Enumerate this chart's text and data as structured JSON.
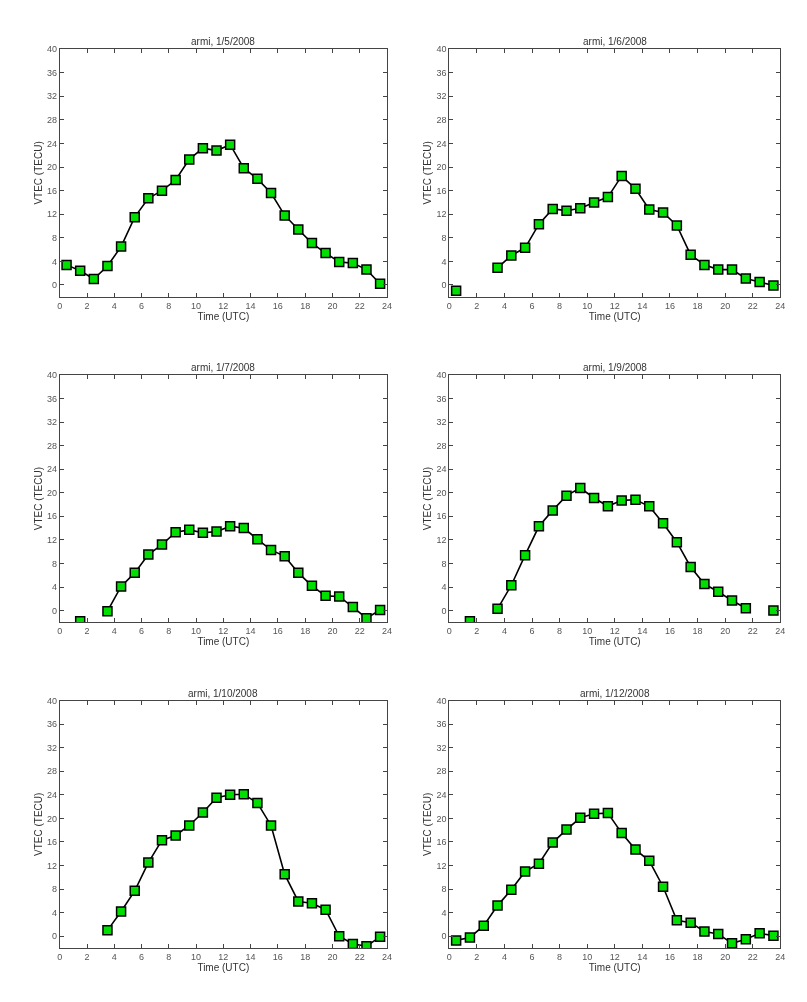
{
  "chart_data": [
    {
      "type": "line",
      "title": "armi, 1/5/2008",
      "xlabel": "Time (UTC)",
      "ylabel": "VTEC (TECU)",
      "marker": "square",
      "xlim": [
        0,
        24
      ],
      "xticks": [
        0,
        2,
        4,
        6,
        8,
        10,
        12,
        14,
        16,
        18,
        20,
        22,
        24
      ],
      "ylim": [
        -2,
        40
      ],
      "yticks": [
        0,
        4,
        8,
        12,
        16,
        20,
        24,
        28,
        32,
        36,
        40
      ],
      "x": [
        0.5,
        1.5,
        2.5,
        3.5,
        4.5,
        5.5,
        6.5,
        7.5,
        8.5,
        9.5,
        10.5,
        11.5,
        12.5,
        13.5,
        14.5,
        15.5,
        16.5,
        17.5,
        18.5,
        19.5,
        20.5,
        21.5,
        22.5,
        23.5
      ],
      "series": [
        {
          "color": "#00e000",
          "values": [
            3.4,
            2.4,
            1.0,
            3.2,
            6.5,
            11.5,
            14.7,
            16.0,
            17.8,
            21.3,
            23.2,
            22.8,
            23.8,
            19.8,
            18.0,
            15.6,
            11.8,
            9.4,
            7.1,
            5.4,
            3.9,
            3.7,
            2.6,
            0.2
          ]
        }
      ]
    },
    {
      "type": "line",
      "title": "armi, 1/6/2008",
      "xlabel": "Time (UTC)",
      "ylabel": "VTEC (TECU)",
      "marker": "square",
      "xlim": [
        0,
        24
      ],
      "xticks": [
        0,
        2,
        4,
        6,
        8,
        10,
        12,
        14,
        16,
        18,
        20,
        22,
        24
      ],
      "ylim": [
        -2,
        40
      ],
      "yticks": [
        0,
        4,
        8,
        12,
        16,
        20,
        24,
        28,
        32,
        36,
        40
      ],
      "x": [
        0.5,
        1.5,
        2.5,
        3.5,
        4.5,
        5.5,
        6.5,
        7.5,
        8.5,
        9.5,
        10.5,
        11.5,
        12.5,
        13.5,
        14.5,
        15.5,
        16.5,
        17.5,
        18.5,
        19.5,
        20.5,
        21.5,
        22.5,
        23.5
      ],
      "series": [
        {
          "color": "#00e000",
          "values": [
            -1.0,
            null,
            null,
            2.9,
            5.0,
            6.3,
            10.3,
            12.9,
            12.6,
            13.0,
            14.0,
            14.9,
            18.5,
            16.3,
            12.8,
            12.3,
            10.1,
            5.1,
            3.4,
            2.6,
            2.6,
            1.1,
            0.5,
            -0.1
          ]
        }
      ]
    },
    {
      "type": "line",
      "title": "armi, 1/7/2008",
      "xlabel": "Time (UTC)",
      "ylabel": "VTEC (TECU)",
      "marker": "square",
      "xlim": [
        0,
        24
      ],
      "xticks": [
        0,
        2,
        4,
        6,
        8,
        10,
        12,
        14,
        16,
        18,
        20,
        22,
        24
      ],
      "ylim": [
        -2,
        40
      ],
      "yticks": [
        0,
        4,
        8,
        12,
        16,
        20,
        24,
        28,
        32,
        36,
        40
      ],
      "x": [
        1.5,
        2.5,
        3.5,
        4.5,
        5.5,
        6.5,
        7.5,
        8.5,
        9.5,
        10.5,
        11.5,
        12.5,
        13.5,
        14.5,
        15.5,
        16.5,
        17.5,
        18.5,
        19.5,
        20.5,
        21.5,
        22.5,
        23.5
      ],
      "series": [
        {
          "color": "#00e000",
          "values": [
            -1.8,
            null,
            -0.1,
            4.1,
            6.4,
            9.5,
            11.2,
            13.3,
            13.7,
            13.2,
            13.4,
            14.3,
            14.0,
            12.1,
            10.3,
            9.2,
            6.4,
            4.2,
            2.5,
            2.4,
            0.6,
            -1.3,
            0.1
          ]
        }
      ]
    },
    {
      "type": "line",
      "title": "armi, 1/9/2008",
      "xlabel": "Time (UTC)",
      "ylabel": "VTEC (TECU)",
      "marker": "square",
      "xlim": [
        0,
        24
      ],
      "xticks": [
        0,
        2,
        4,
        6,
        8,
        10,
        12,
        14,
        16,
        18,
        20,
        22,
        24
      ],
      "ylim": [
        -2,
        40
      ],
      "yticks": [
        0,
        4,
        8,
        12,
        16,
        20,
        24,
        28,
        32,
        36,
        40
      ],
      "x": [
        1.5,
        2.5,
        3.5,
        4.5,
        5.5,
        6.5,
        7.5,
        8.5,
        9.5,
        10.5,
        11.5,
        12.5,
        13.5,
        14.5,
        15.5,
        16.5,
        17.5,
        18.5,
        19.5,
        20.5,
        21.5,
        22.5,
        23.5
      ],
      "series": [
        {
          "color": "#00e000",
          "values": [
            -1.8,
            null,
            0.3,
            4.3,
            9.4,
            14.3,
            17.0,
            19.5,
            20.8,
            19.1,
            17.7,
            18.7,
            18.8,
            17.7,
            14.8,
            11.6,
            7.4,
            4.5,
            3.2,
            1.7,
            0.4,
            null,
            0.0
          ]
        }
      ]
    },
    {
      "type": "line",
      "title": "armi, 1/10/2008",
      "xlabel": "Time (UTC)",
      "ylabel": "VTEC (TECU)",
      "marker": "square",
      "xlim": [
        0,
        24
      ],
      "xticks": [
        0,
        2,
        4,
        6,
        8,
        10,
        12,
        14,
        16,
        18,
        20,
        22,
        24
      ],
      "ylim": [
        -2,
        40
      ],
      "yticks": [
        0,
        4,
        8,
        12,
        16,
        20,
        24,
        28,
        32,
        36,
        40
      ],
      "x": [
        3.5,
        4.5,
        5.5,
        6.5,
        7.5,
        8.5,
        9.5,
        10.5,
        11.5,
        12.5,
        13.5,
        14.5,
        15.5,
        16.5,
        17.5,
        18.5,
        19.5,
        20.5,
        21.5,
        22.5,
        23.5
      ],
      "series": [
        {
          "color": "#00e000",
          "values": [
            1.0,
            4.2,
            7.7,
            12.5,
            16.3,
            17.1,
            18.8,
            21.0,
            23.5,
            24.0,
            24.1,
            22.6,
            18.8,
            10.5,
            5.9,
            5.6,
            4.5,
            0.0,
            -1.3,
            -1.7,
            -0.1
          ]
        }
      ]
    },
    {
      "type": "line",
      "title": "armi, 1/12/2008",
      "xlabel": "Time (UTC)",
      "ylabel": "VTEC (TECU)",
      "marker": "square",
      "xlim": [
        0,
        24
      ],
      "xticks": [
        0,
        2,
        4,
        6,
        8,
        10,
        12,
        14,
        16,
        18,
        20,
        22,
        24
      ],
      "ylim": [
        -2,
        40
      ],
      "yticks": [
        0,
        4,
        8,
        12,
        16,
        20,
        24,
        28,
        32,
        36,
        40
      ],
      "x": [
        0.5,
        1.5,
        2.5,
        3.5,
        4.5,
        5.5,
        6.5,
        7.5,
        8.5,
        9.5,
        10.5,
        11.5,
        12.5,
        13.5,
        14.5,
        15.5,
        16.5,
        17.5,
        18.5,
        19.5,
        20.5,
        21.5,
        22.5,
        23.5
      ],
      "series": [
        {
          "color": "#00e000",
          "values": [
            -0.7,
            -0.2,
            1.8,
            5.2,
            7.9,
            11.0,
            12.3,
            15.9,
            18.1,
            20.1,
            20.8,
            20.9,
            17.5,
            14.7,
            12.8,
            8.4,
            2.7,
            2.3,
            0.8,
            0.4,
            -1.2,
            -0.5,
            0.5,
            0.1
          ]
        }
      ]
    }
  ]
}
